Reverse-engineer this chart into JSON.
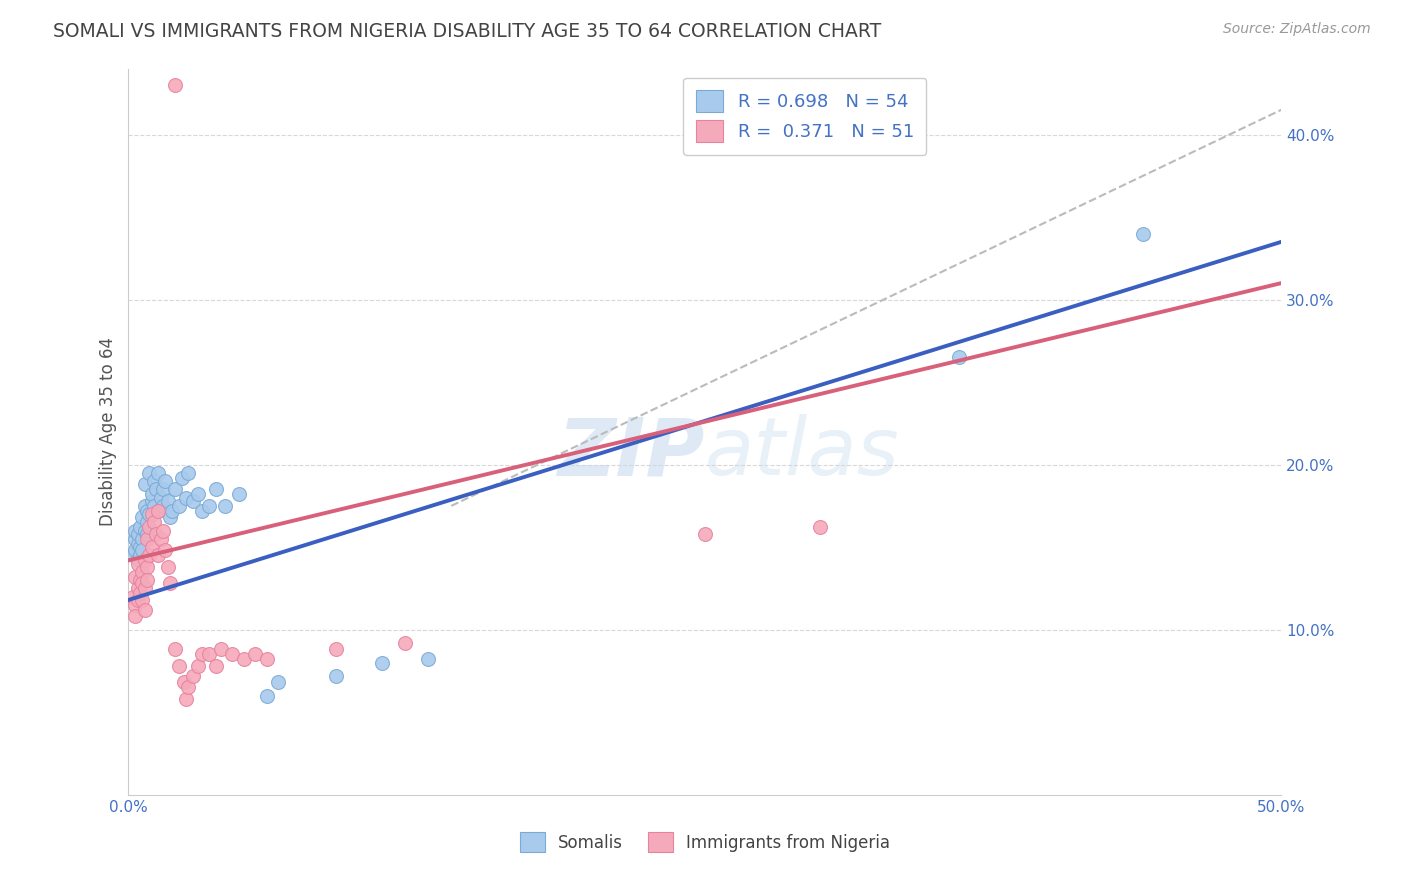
{
  "title": "SOMALI VS IMMIGRANTS FROM NIGERIA DISABILITY AGE 35 TO 64 CORRELATION CHART",
  "source": "Source: ZipAtlas.com",
  "ylabel": "Disability Age 35 to 64",
  "x_min": 0.0,
  "x_max": 0.5,
  "y_min": 0.0,
  "y_max": 0.44,
  "x_ticks": [
    0.0,
    0.1,
    0.2,
    0.3,
    0.4,
    0.5
  ],
  "x_tick_labels": [
    "0.0%",
    "",
    "",
    "",
    "",
    "50.0%"
  ],
  "y_ticks": [
    0.1,
    0.2,
    0.3,
    0.4
  ],
  "y_tick_labels": [
    "10.0%",
    "20.0%",
    "30.0%",
    "40.0%"
  ],
  "somali_R": 0.698,
  "somali_N": 54,
  "nigeria_R": 0.371,
  "nigeria_N": 51,
  "somali_color": "#A8CAED",
  "nigeria_color": "#F5AABB",
  "somali_edge": "#7BAAD4",
  "nigeria_edge": "#E882A0",
  "trend_somali_color": "#3B5FC0",
  "trend_nigeria_color": "#D9607A",
  "trend_dashed_color": "#BBBBBB",
  "watermark": "ZIPatlas",
  "legend_labels": [
    "Somalis",
    "Immigrants from Nigeria"
  ],
  "somali_scatter": [
    [
      0.002,
      0.145
    ],
    [
      0.003,
      0.155
    ],
    [
      0.003,
      0.16
    ],
    [
      0.003,
      0.148
    ],
    [
      0.004,
      0.152
    ],
    [
      0.004,
      0.158
    ],
    [
      0.004,
      0.143
    ],
    [
      0.005,
      0.15
    ],
    [
      0.005,
      0.145
    ],
    [
      0.005,
      0.162
    ],
    [
      0.006,
      0.155
    ],
    [
      0.006,
      0.148
    ],
    [
      0.006,
      0.168
    ],
    [
      0.007,
      0.16
    ],
    [
      0.007,
      0.175
    ],
    [
      0.007,
      0.188
    ],
    [
      0.008,
      0.165
    ],
    [
      0.008,
      0.172
    ],
    [
      0.008,
      0.158
    ],
    [
      0.009,
      0.17
    ],
    [
      0.009,
      0.195
    ],
    [
      0.01,
      0.178
    ],
    [
      0.01,
      0.182
    ],
    [
      0.011,
      0.19
    ],
    [
      0.011,
      0.175
    ],
    [
      0.012,
      0.185
    ],
    [
      0.013,
      0.172
    ],
    [
      0.013,
      0.195
    ],
    [
      0.014,
      0.18
    ],
    [
      0.015,
      0.185
    ],
    [
      0.015,
      0.175
    ],
    [
      0.016,
      0.19
    ],
    [
      0.017,
      0.178
    ],
    [
      0.018,
      0.168
    ],
    [
      0.019,
      0.172
    ],
    [
      0.02,
      0.185
    ],
    [
      0.022,
      0.175
    ],
    [
      0.023,
      0.192
    ],
    [
      0.025,
      0.18
    ],
    [
      0.026,
      0.195
    ],
    [
      0.028,
      0.178
    ],
    [
      0.03,
      0.182
    ],
    [
      0.032,
      0.172
    ],
    [
      0.035,
      0.175
    ],
    [
      0.038,
      0.185
    ],
    [
      0.042,
      0.175
    ],
    [
      0.048,
      0.182
    ],
    [
      0.06,
      0.06
    ],
    [
      0.065,
      0.068
    ],
    [
      0.09,
      0.072
    ],
    [
      0.11,
      0.08
    ],
    [
      0.13,
      0.082
    ],
    [
      0.36,
      0.265
    ],
    [
      0.44,
      0.34
    ]
  ],
  "nigeria_scatter": [
    [
      0.002,
      0.12
    ],
    [
      0.003,
      0.115
    ],
    [
      0.003,
      0.108
    ],
    [
      0.003,
      0.132
    ],
    [
      0.004,
      0.125
    ],
    [
      0.004,
      0.118
    ],
    [
      0.004,
      0.14
    ],
    [
      0.005,
      0.13
    ],
    [
      0.005,
      0.122
    ],
    [
      0.006,
      0.135
    ],
    [
      0.006,
      0.128
    ],
    [
      0.006,
      0.118
    ],
    [
      0.007,
      0.142
    ],
    [
      0.007,
      0.125
    ],
    [
      0.007,
      0.112
    ],
    [
      0.008,
      0.138
    ],
    [
      0.008,
      0.13
    ],
    [
      0.008,
      0.155
    ],
    [
      0.009,
      0.145
    ],
    [
      0.009,
      0.162
    ],
    [
      0.01,
      0.15
    ],
    [
      0.01,
      0.17
    ],
    [
      0.011,
      0.165
    ],
    [
      0.012,
      0.158
    ],
    [
      0.013,
      0.172
    ],
    [
      0.013,
      0.145
    ],
    [
      0.014,
      0.155
    ],
    [
      0.015,
      0.16
    ],
    [
      0.016,
      0.148
    ],
    [
      0.017,
      0.138
    ],
    [
      0.018,
      0.128
    ],
    [
      0.02,
      0.088
    ],
    [
      0.022,
      0.078
    ],
    [
      0.024,
      0.068
    ],
    [
      0.025,
      0.058
    ],
    [
      0.026,
      0.065
    ],
    [
      0.028,
      0.072
    ],
    [
      0.03,
      0.078
    ],
    [
      0.032,
      0.085
    ],
    [
      0.035,
      0.085
    ],
    [
      0.038,
      0.078
    ],
    [
      0.04,
      0.088
    ],
    [
      0.045,
      0.085
    ],
    [
      0.05,
      0.082
    ],
    [
      0.055,
      0.085
    ],
    [
      0.06,
      0.082
    ],
    [
      0.09,
      0.088
    ],
    [
      0.12,
      0.092
    ],
    [
      0.02,
      0.43
    ],
    [
      0.25,
      0.158
    ],
    [
      0.3,
      0.162
    ]
  ],
  "somali_trend_x": [
    0.0,
    0.5
  ],
  "somali_trend_y": [
    0.118,
    0.335
  ],
  "nigeria_trend_x": [
    0.0,
    0.5
  ],
  "nigeria_trend_y": [
    0.142,
    0.31
  ],
  "dashed_trend_x": [
    0.14,
    0.5
  ],
  "dashed_trend_y": [
    0.175,
    0.415
  ],
  "background_color": "#FFFFFF",
  "grid_color": "#D8D8D8",
  "title_color": "#444444",
  "axis_label_color": "#555555",
  "tick_color": "#4472C4"
}
